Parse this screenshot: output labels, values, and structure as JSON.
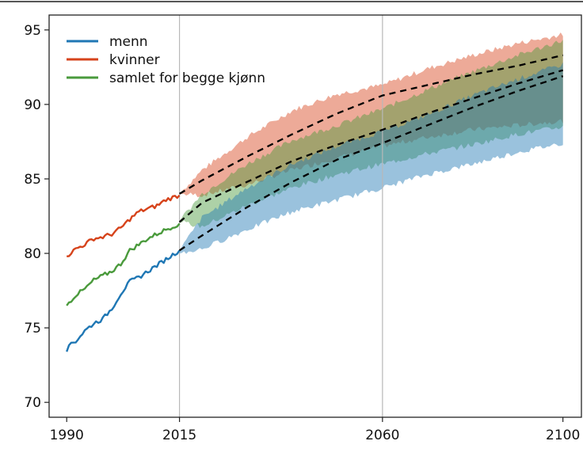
{
  "chart_data": {
    "type": "line",
    "title": "",
    "xlabel": "",
    "ylabel": "",
    "xlim": [
      1986.1,
      2104.1
    ],
    "ylim": [
      69,
      96
    ],
    "x_ticks": [
      1990,
      2015,
      2060,
      2100
    ],
    "y_ticks": [
      70,
      75,
      80,
      85,
      90,
      95
    ],
    "vertical_reference_lines": [
      2015,
      2060
    ],
    "grid": false,
    "legend_position": "top-left",
    "colors": {
      "menn": "#1f77b4",
      "kvinner": "#d6431b",
      "samlet": "#4a9a3c",
      "projection": "#000000"
    },
    "legend": [
      {
        "key": "menn",
        "label": "menn"
      },
      {
        "key": "kvinner",
        "label": "kvinner"
      },
      {
        "key": "samlet",
        "label": "samlet for begge kjønn"
      }
    ],
    "series": [
      {
        "name": "kvinner",
        "color": "#d6431b",
        "historical": {
          "x": [
            1990,
            1992,
            1994,
            1996,
            1998,
            2000,
            2002,
            2004,
            2006,
            2008,
            2010,
            2012,
            2015
          ],
          "y": [
            79.8,
            80.3,
            80.6,
            81.0,
            81.1,
            81.3,
            81.7,
            82.3,
            82.8,
            83.0,
            83.2,
            83.6,
            83.9
          ]
        },
        "projection_median": {
          "x": [
            2015,
            2020,
            2030,
            2040,
            2050,
            2060,
            2070,
            2080,
            2090,
            2100
          ],
          "y": [
            84.0,
            84.9,
            86.5,
            88.0,
            89.4,
            90.6,
            91.3,
            92.0,
            92.6,
            93.3
          ]
        },
        "band_upper": {
          "x": [
            2015,
            2020,
            2030,
            2040,
            2050,
            2060,
            2070,
            2080,
            2090,
            2100
          ],
          "y": [
            84.0,
            85.6,
            87.8,
            89.6,
            90.7,
            91.3,
            92.4,
            93.3,
            94.1,
            94.7
          ]
        },
        "band_lower": {
          "x": [
            2015,
            2020,
            2030,
            2040,
            2050,
            2060,
            2070,
            2080,
            2090,
            2100
          ],
          "y": [
            84.0,
            83.9,
            84.6,
            85.6,
            86.4,
            87.2,
            87.8,
            88.3,
            88.6,
            88.9
          ]
        }
      },
      {
        "name": "samlet for begge kjønn",
        "color": "#4a9a3c",
        "historical": {
          "x": [
            1990,
            1992,
            1994,
            1996,
            1998,
            2000,
            2002,
            2004,
            2006,
            2008,
            2010,
            2012,
            2015
          ],
          "y": [
            76.5,
            77.2,
            77.6,
            78.2,
            78.5,
            78.8,
            79.3,
            80.2,
            80.6,
            81.0,
            81.3,
            81.6,
            82.0
          ]
        },
        "projection_median": {
          "x": [
            2015,
            2020,
            2030,
            2040,
            2050,
            2060,
            2070,
            2080,
            2090,
            2100
          ],
          "y": [
            82.1,
            83.4,
            84.8,
            86.2,
            87.3,
            88.3,
            89.4,
            90.4,
            91.4,
            92.3
          ]
        },
        "band_upper": {
          "x": [
            2015,
            2020,
            2030,
            2040,
            2050,
            2060,
            2070,
            2080,
            2090,
            2100
          ],
          "y": [
            82.2,
            84.0,
            86.0,
            87.6,
            88.6,
            89.7,
            91.0,
            92.2,
            93.3,
            94.3
          ]
        },
        "band_lower": {
          "x": [
            2015,
            2020,
            2030,
            2040,
            2050,
            2060,
            2070,
            2080,
            2090,
            2100
          ],
          "y": [
            82.1,
            81.8,
            83.2,
            84.4,
            85.3,
            86.0,
            86.7,
            87.3,
            88.0,
            88.5
          ]
        }
      },
      {
        "name": "menn",
        "color": "#1f77b4",
        "historical": {
          "x": [
            1990,
            1991,
            1992,
            1994,
            1996,
            1998,
            2000,
            2002,
            2004,
            2006,
            2008,
            2010,
            2012,
            2015
          ],
          "y": [
            73.4,
            74.0,
            74.1,
            74.8,
            75.3,
            75.6,
            76.3,
            77.3,
            78.1,
            78.4,
            78.8,
            79.2,
            79.6,
            80.2
          ]
        },
        "projection_median": {
          "x": [
            2015,
            2020,
            2030,
            2040,
            2050,
            2060,
            2070,
            2080,
            2090,
            2100
          ],
          "y": [
            80.2,
            81.2,
            83.1,
            84.8,
            86.3,
            87.4,
            88.6,
            89.8,
            90.9,
            91.9
          ]
        },
        "band_upper": {
          "x": [
            2015,
            2020,
            2030,
            2040,
            2050,
            2060,
            2070,
            2080,
            2090,
            2100
          ],
          "y": [
            80.2,
            82.4,
            84.4,
            86.0,
            87.2,
            88.2,
            89.3,
            90.6,
            91.7,
            92.7
          ]
        },
        "band_lower": {
          "x": [
            2015,
            2020,
            2030,
            2040,
            2050,
            2060,
            2070,
            2080,
            2090,
            2100
          ],
          "y": [
            80.0,
            80.3,
            81.6,
            82.8,
            83.6,
            84.4,
            85.3,
            86.0,
            86.8,
            87.4
          ]
        }
      }
    ]
  }
}
